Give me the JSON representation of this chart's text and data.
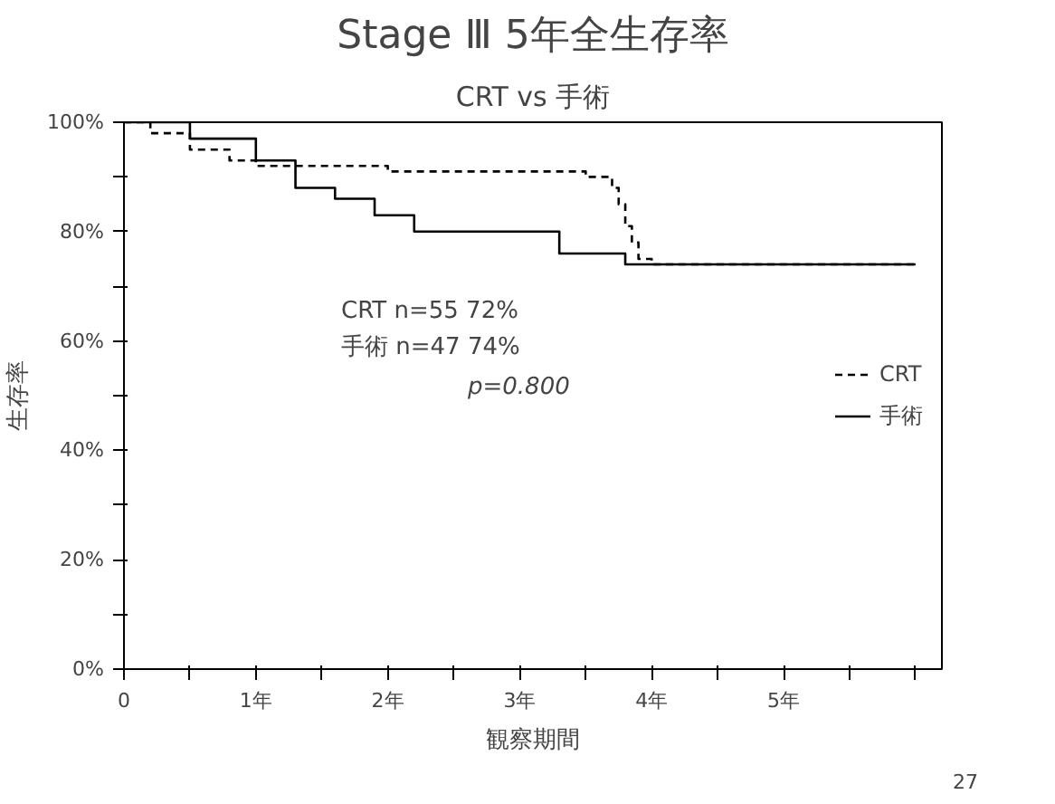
{
  "chart_data": {
    "type": "step",
    "title": "Stage Ⅲ 5年全生存率",
    "subtitle": "CRT vs 手術",
    "xlabel": "観察期間",
    "ylabel": "生存率",
    "series": [
      {
        "name": "CRT",
        "color": "#000000",
        "line_style": "dashed",
        "x": [
          0,
          0.2,
          0.5,
          0.8,
          1.0,
          1.2,
          2.0,
          3.5,
          3.7,
          3.75,
          3.8,
          3.85,
          3.9,
          4.0,
          6.0
        ],
        "values": [
          100,
          98,
          95,
          93,
          92,
          92,
          91,
          90,
          88,
          85,
          81,
          78,
          75,
          74,
          74
        ]
      },
      {
        "name": "手術",
        "color": "#000000",
        "line_style": "solid",
        "x": [
          0,
          0.5,
          1.0,
          1.3,
          1.6,
          1.9,
          2.2,
          3.1,
          3.3,
          3.8,
          6.0
        ],
        "values": [
          100,
          97,
          93,
          88,
          86,
          83,
          80,
          80,
          76,
          74,
          74
        ]
      }
    ],
    "xlim": [
      0,
      6.2
    ],
    "ylim": [
      0,
      100
    ],
    "xticks": [
      {
        "value": 0,
        "label": "0"
      },
      {
        "value": 0.5,
        "label": null
      },
      {
        "value": 1,
        "label": "1年"
      },
      {
        "value": 1.5,
        "label": null
      },
      {
        "value": 2,
        "label": "2年"
      },
      {
        "value": 2.5,
        "label": null
      },
      {
        "value": 3,
        "label": "3年"
      },
      {
        "value": 3.5,
        "label": null
      },
      {
        "value": 4,
        "label": "4年"
      },
      {
        "value": 4.5,
        "label": null
      },
      {
        "value": 5,
        "label": "5年"
      },
      {
        "value": 5.5,
        "label": null
      },
      {
        "value": 6,
        "label": null
      }
    ],
    "yticks": [
      {
        "value": 0,
        "label": "0%"
      },
      {
        "value": 10,
        "label": null
      },
      {
        "value": 20,
        "label": "20%"
      },
      {
        "value": 30,
        "label": null
      },
      {
        "value": 40,
        "label": "40%"
      },
      {
        "value": 50,
        "label": null
      },
      {
        "value": 60,
        "label": "60%"
      },
      {
        "value": 70,
        "label": null
      },
      {
        "value": 80,
        "label": "80%"
      },
      {
        "value": 90,
        "label": null
      },
      {
        "value": 100,
        "label": "100%"
      }
    ],
    "annotations": [
      "CRT  n=55      72%",
      "手術  n=47      74%",
      "p=0.800",
      "27"
    ],
    "legend": "right",
    "grid": false,
    "marker": "none"
  }
}
